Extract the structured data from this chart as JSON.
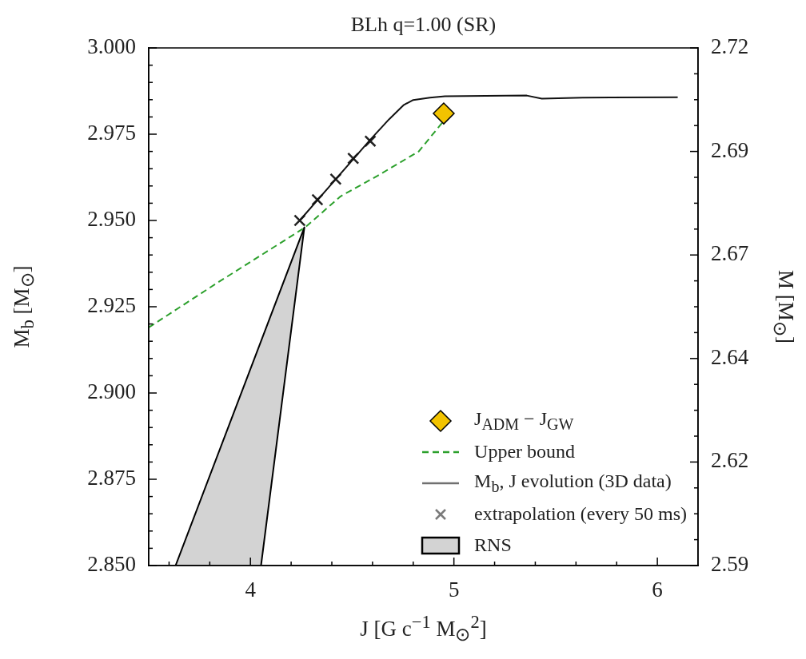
{
  "chart_data": {
    "type": "line",
    "title": "BLh q=1.00 (SR)",
    "xlabel": "J [G c$^{−1}$ M$_{⊙}$$^{2}$]",
    "ylabel": "M$_{b}$ [M$_{⊙}$]",
    "y2label": "M [M$_{⊙}$]",
    "xlim": [
      3.5,
      6.2
    ],
    "ylim": [
      2.85,
      3.0
    ],
    "y2lim": [
      2.59,
      2.72
    ],
    "xticks": [
      {
        "value": 3.6,
        "label": null
      },
      {
        "value": 3.8,
        "label": null
      },
      4,
      {
        "value": 4.2,
        "label": null
      },
      {
        "value": 4.4,
        "label": null
      },
      {
        "value": 4.6,
        "label": null
      },
      {
        "value": 4.8,
        "label": null
      },
      5,
      {
        "value": 5.2,
        "label": null
      },
      {
        "value": 5.4,
        "label": null
      },
      {
        "value": 5.6,
        "label": null
      },
      {
        "value": 5.8,
        "label": null
      },
      6
    ],
    "yticks": [
      {
        "value": 3,
        "label": "3.000"
      },
      {
        "value": 2.995,
        "label": null
      },
      {
        "value": 2.99,
        "label": null
      },
      {
        "value": 2.985,
        "label": null
      },
      {
        "value": 2.98,
        "label": null
      },
      2.975,
      {
        "value": 2.97,
        "label": null
      },
      {
        "value": 2.965,
        "label": null
      },
      {
        "value": 2.96,
        "label": null
      },
      {
        "value": 2.955,
        "label": null
      },
      {
        "value": 2.95,
        "label": "2.950"
      },
      {
        "value": 2.945,
        "label": null
      },
      {
        "value": 2.94,
        "label": null
      },
      {
        "value": 2.935,
        "label": null
      },
      {
        "value": 2.93,
        "label": null
      },
      2.925,
      {
        "value": 2.92,
        "label": null
      },
      {
        "value": 2.915,
        "label": null
      },
      {
        "value": 2.91,
        "label": null
      },
      {
        "value": 2.905,
        "label": null
      },
      {
        "value": 2.9,
        "label": "2.900"
      },
      {
        "value": 2.895,
        "label": null
      },
      {
        "value": 2.89,
        "label": null
      },
      {
        "value": 2.885,
        "label": null
      },
      {
        "value": 2.88,
        "label": null
      },
      2.875,
      {
        "value": 2.87,
        "label": null
      },
      {
        "value": 2.865,
        "label": null
      },
      {
        "value": 2.86,
        "label": null
      },
      {
        "value": 2.855,
        "label": null
      },
      {
        "value": 2.85,
        "label": "2.850"
      }
    ],
    "y2ticks": [
      2.72,
      {
        "value": 2.7135,
        "label": null
      },
      {
        "value": 2.707,
        "label": null
      },
      {
        "value": 2.7005,
        "label": null
      },
      {
        "value": 2.694,
        "label": "2.69"
      },
      {
        "value": 2.6875,
        "label": null
      },
      {
        "value": 2.681,
        "label": null
      },
      {
        "value": 2.6745,
        "label": null
      },
      {
        "value": 2.668,
        "label": "2.67"
      },
      {
        "value": 2.6615,
        "label": null
      },
      {
        "value": 2.655,
        "label": null
      },
      {
        "value": 2.6485,
        "label": null
      },
      {
        "value": 2.642,
        "label": "2.64"
      },
      {
        "value": 2.6355,
        "label": null
      },
      {
        "value": 2.629,
        "label": null
      },
      {
        "value": 2.6225,
        "label": null
      },
      {
        "value": 2.616,
        "label": "2.62"
      },
      {
        "value": 2.6095,
        "label": null
      },
      {
        "value": 2.603,
        "label": null
      },
      {
        "value": 2.5965,
        "label": null
      },
      2.59
    ],
    "grid": false,
    "legend": "bottom right",
    "series": [
      {
        "name": "J$_{ADM}$ − J$_{GW}$",
        "type": "scatter",
        "marker": "diamond",
        "color": "#f2c300",
        "x": [
          4.95
        ],
        "values": [
          2.981
        ]
      },
      {
        "name": "Upper bound",
        "type": "line",
        "line_style": "dashed",
        "color": "#2ca02c",
        "x": [
          3.5,
          3.839,
          4.269,
          4.443,
          4.626,
          4.827,
          4.952
        ],
        "values": [
          2.919,
          2.932,
          2.948,
          2.957,
          2.963,
          2.97,
          2.979
        ]
      },
      {
        "name": "M$_{b}$, J evolution (3D data)",
        "type": "line",
        "line_style": "solid",
        "color": "#111111",
        "x": [
          4.242,
          4.589,
          4.681,
          4.754,
          4.8,
          4.882,
          4.956,
          5.358,
          5.432,
          5.633,
          6.1
        ],
        "values": [
          2.95,
          2.9734,
          2.9793,
          2.9835,
          2.9849,
          2.9856,
          2.986,
          2.9862,
          2.9853,
          2.9856,
          2.9857
        ]
      },
      {
        "name": "extrapolation (every 50 ms)",
        "type": "scatter",
        "marker": "cross",
        "color": "#222222",
        "x": [
          4.242,
          4.329,
          4.419,
          4.505,
          4.589
        ],
        "values": [
          2.95,
          2.956,
          2.962,
          2.968,
          2.973
        ]
      },
      {
        "name": "RNS",
        "type": "area",
        "color": "#d3d3d3",
        "x": [
          3.632,
          4.265,
          4.052,
          3.632
        ],
        "values": [
          2.85,
          2.948,
          2.85,
          2.85
        ]
      }
    ]
  }
}
